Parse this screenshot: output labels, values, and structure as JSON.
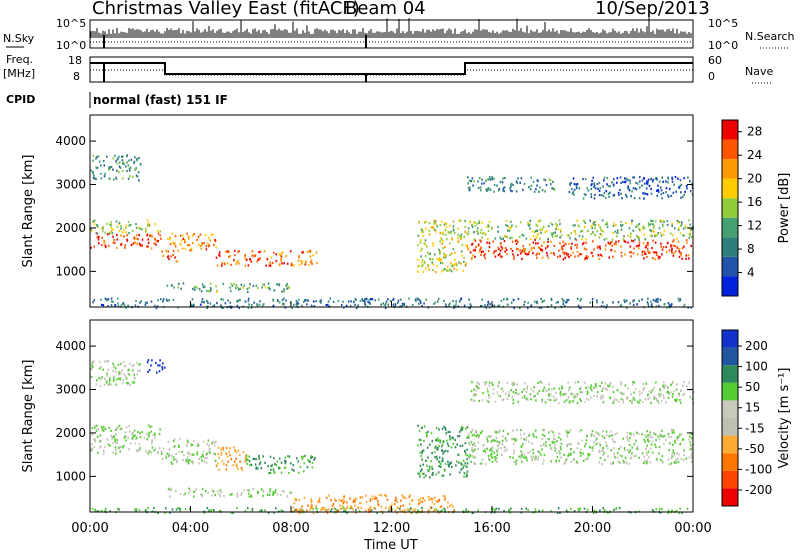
{
  "header": {
    "title": "Christmas Valley East (fitACF)",
    "beam": "Beam 04",
    "date": "10/Sep/2013"
  },
  "status_panels": {
    "nsky_label": "N.Sky",
    "nsky_ticks": [
      "10^5",
      "10^0"
    ],
    "nsearch_label": "N.Search",
    "nsearch_ticks": [
      "10^5",
      "10^0"
    ],
    "freq_label_1": "Freq.",
    "freq_label_2": "[MHz]",
    "freq_ticks": [
      "18",
      "8"
    ],
    "nave_label": "Nave",
    "nave_ticks": [
      "60",
      "0"
    ],
    "cpid_label": "CPID",
    "cpid_text": "normal (fast) 151 IF"
  },
  "colors": {
    "power": [
      "#0022dd",
      "#2255aa",
      "#2e7f7a",
      "#44a070",
      "#8fcc3a",
      "#ffcc00",
      "#ff9900",
      "#ff5500",
      "#ee0000"
    ],
    "velocity": [
      "#1133cc",
      "#2255a0",
      "#2e8a5a",
      "#55cc33",
      "#c8c8bc",
      "#bfbfb3",
      "#ffaa33",
      "#ff7700",
      "#ff4400",
      "#ee0000"
    ],
    "background": "#ffffff"
  },
  "chart_data": [
    {
      "type": "heatmap",
      "name": "power",
      "xlabel": "",
      "ylabel": "Slant Range [km]",
      "xlim": [
        0,
        24
      ],
      "ylim": [
        180,
        4600
      ],
      "x_ticks": [
        "00:00",
        "04:00",
        "08:00",
        "12:00",
        "16:00",
        "20:00",
        "00:00"
      ],
      "y_ticks": [
        "1000",
        "2000",
        "3000",
        "4000"
      ],
      "colorbar_label": "Power [dB]",
      "colorbar_ticks": [
        "4",
        "8",
        "12",
        "16",
        "20",
        "24",
        "28"
      ],
      "range_db": [
        0,
        30
      ],
      "echo_bands": [
        {
          "t": [
            0.0,
            2.8
          ],
          "range_km": [
            1550,
            1900
          ],
          "power_db": 26
        },
        {
          "t": [
            0.0,
            2.8
          ],
          "range_km": [
            1900,
            2200
          ],
          "power_db": 15
        },
        {
          "t": [
            0.0,
            2.0
          ],
          "range_km": [
            3100,
            3700
          ],
          "power_db": 10
        },
        {
          "t": [
            2.8,
            3.5
          ],
          "range_km": [
            1250,
            1500
          ],
          "power_db": 25
        },
        {
          "t": [
            3.0,
            5.0
          ],
          "range_km": [
            1500,
            1900
          ],
          "power_db": 22
        },
        {
          "t": [
            5.0,
            9.0
          ],
          "range_km": [
            1150,
            1500
          ],
          "power_db": 24
        },
        {
          "t": [
            3.0,
            8.0
          ],
          "range_km": [
            550,
            750
          ],
          "power_db": 12
        },
        {
          "t": [
            0.0,
            24.0
          ],
          "range_km": [
            180,
            400
          ],
          "power_db": 8
        },
        {
          "t": [
            13.0,
            15.0
          ],
          "range_km": [
            1000,
            2200
          ],
          "power_db": 16
        },
        {
          "t": [
            15.0,
            24.0
          ],
          "range_km": [
            1300,
            1750
          ],
          "power_db": 27
        },
        {
          "t": [
            15.0,
            24.0
          ],
          "range_km": [
            1750,
            2200
          ],
          "power_db": 14
        },
        {
          "t": [
            15.0,
            18.5
          ],
          "range_km": [
            2850,
            3200
          ],
          "power_db": 9
        },
        {
          "t": [
            19.0,
            24.0
          ],
          "range_km": [
            2700,
            3200
          ],
          "power_db": 6
        }
      ]
    },
    {
      "type": "heatmap",
      "name": "velocity",
      "xlabel": "Time UT",
      "ylabel": "Slant Range [km]",
      "xlim": [
        0,
        24
      ],
      "ylim": [
        180,
        4600
      ],
      "x_ticks": [
        "00:00",
        "04:00",
        "08:00",
        "12:00",
        "16:00",
        "20:00",
        "00:00"
      ],
      "y_ticks": [
        "1000",
        "2000",
        "3000",
        "4000"
      ],
      "colorbar_label": "Velocity [m s⁻¹]",
      "colorbar_ticks": [
        "200",
        "100",
        "50",
        "15",
        "-15",
        "-50",
        "-100",
        "-200"
      ],
      "echo_bands": [
        {
          "t": [
            0.0,
            2.8
          ],
          "range_km": [
            1550,
            2200
          ],
          "velocity": 0
        },
        {
          "t": [
            0.0,
            2.0
          ],
          "range_km": [
            3100,
            3700
          ],
          "velocity": 0
        },
        {
          "t": [
            2.2,
            3.0
          ],
          "range_km": [
            3400,
            3700
          ],
          "velocity": 200
        },
        {
          "t": [
            2.8,
            5.0
          ],
          "range_km": [
            1300,
            1900
          ],
          "velocity": 0
        },
        {
          "t": [
            5.0,
            6.2
          ],
          "range_km": [
            1150,
            1700
          ],
          "velocity": -60
        },
        {
          "t": [
            6.2,
            9.0
          ],
          "range_km": [
            1100,
            1500
          ],
          "velocity": 40
        },
        {
          "t": [
            3.0,
            8.0
          ],
          "range_km": [
            550,
            750
          ],
          "velocity": 0
        },
        {
          "t": [
            0.0,
            24.0
          ],
          "range_km": [
            180,
            300
          ],
          "velocity": 30
        },
        {
          "t": [
            8.0,
            14.5
          ],
          "range_km": [
            180,
            600
          ],
          "velocity": -70
        },
        {
          "t": [
            13.0,
            15.0
          ],
          "range_km": [
            1000,
            2200
          ],
          "velocity": 40
        },
        {
          "t": [
            15.0,
            24.0
          ],
          "range_km": [
            1300,
            2100
          ],
          "velocity": 0
        },
        {
          "t": [
            15.0,
            24.0
          ],
          "range_km": [
            2700,
            3200
          ],
          "velocity": 0
        }
      ]
    }
  ]
}
